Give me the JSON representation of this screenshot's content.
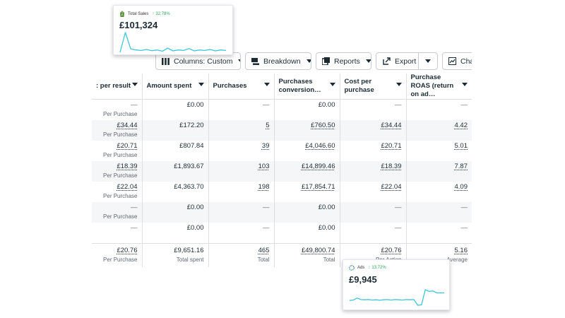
{
  "toolbar": {
    "columns_label": "Columns: Custom",
    "breakdown_label": "Breakdown",
    "reports_label": "Reports",
    "export_label": "Export",
    "chart_label": "Char"
  },
  "table": {
    "headers": [
      ": per result",
      "Amount spent",
      "Purchases",
      "Purchases conversion…",
      "Cost per purchase",
      "Purchase ROAS (return on ad…"
    ],
    "rows": [
      {
        "per_result": "—",
        "per_result_sub": "Per Purchase",
        "amount": "£0.00",
        "purchases": "—",
        "conversion": "£0.00",
        "cost": "—",
        "roas": "—"
      },
      {
        "per_result": "£34.44",
        "per_result_sub": "Per Purchase",
        "amount": "£172.20",
        "purchases": "5",
        "conversion": "£760.50",
        "cost": "£34.44",
        "roas": "4.42"
      },
      {
        "per_result": "£20.71",
        "per_result_sub": "Per Purchase",
        "amount": "£807.84",
        "purchases": "39",
        "conversion": "£4,046.60",
        "cost": "£20.71",
        "roas": "5.01"
      },
      {
        "per_result": "£18.39",
        "per_result_sub": "Per Purchase",
        "amount": "£1,893.67",
        "purchases": "103",
        "conversion": "£14,899.46",
        "cost": "£18.39",
        "roas": "7.87"
      },
      {
        "per_result": "£22.04",
        "per_result_sub": "Per Purchase",
        "amount": "£4,363.70",
        "purchases": "198",
        "conversion": "£17,854.71",
        "cost": "£22.04",
        "roas": "4.09"
      },
      {
        "per_result": "—",
        "per_result_sub": "Per Purchase",
        "amount": "£0.00",
        "purchases": "—",
        "conversion": "£0.00",
        "cost": "—",
        "roas": "—"
      },
      {
        "per_result": "—",
        "per_result_sub": "",
        "amount": "£0.00",
        "purchases": "—",
        "conversion": "£0.00",
        "cost": "—",
        "roas": "—"
      }
    ],
    "totals": {
      "per_result": "£20.76",
      "per_result_sub": "Per Purchase",
      "amount": "£9,651.16",
      "amount_sub": "Total spent",
      "purchases": "465",
      "purchases_sub": "Total",
      "conversion": "£49,800.74",
      "conversion_sub": "Total",
      "cost": "£20.76",
      "cost_sub": "Per Action",
      "roas": "5.16",
      "roas_sub": "Average"
    }
  },
  "sales_card": {
    "label": "Total Sales",
    "change": "32.78%",
    "value": "£101,324",
    "icon": "shopify-bag-icon",
    "trend": [
      10,
      95,
      25,
      20,
      18,
      22,
      17,
      20,
      15,
      28,
      16,
      20,
      18,
      26,
      16,
      20,
      18,
      22,
      16,
      20,
      18
    ]
  },
  "ads_card": {
    "label": "Ads",
    "change": "13.72%",
    "value": "£9,945",
    "icon": "ads-dotted-ring-icon",
    "trend": [
      40,
      42,
      50,
      44,
      43,
      44,
      42,
      43,
      41,
      43,
      44,
      42,
      44,
      43,
      42,
      44,
      43,
      44,
      20,
      22,
      85,
      78,
      80,
      72,
      72,
      72
    ]
  },
  "colors": {
    "accent": "#3cc6d6",
    "positive": "#2aa55a",
    "shopify_green": "#5a8e3a",
    "text": "#1c2b33",
    "muted": "#606770",
    "border": "#dddfe2",
    "alt_row": "#f5f6f7"
  }
}
